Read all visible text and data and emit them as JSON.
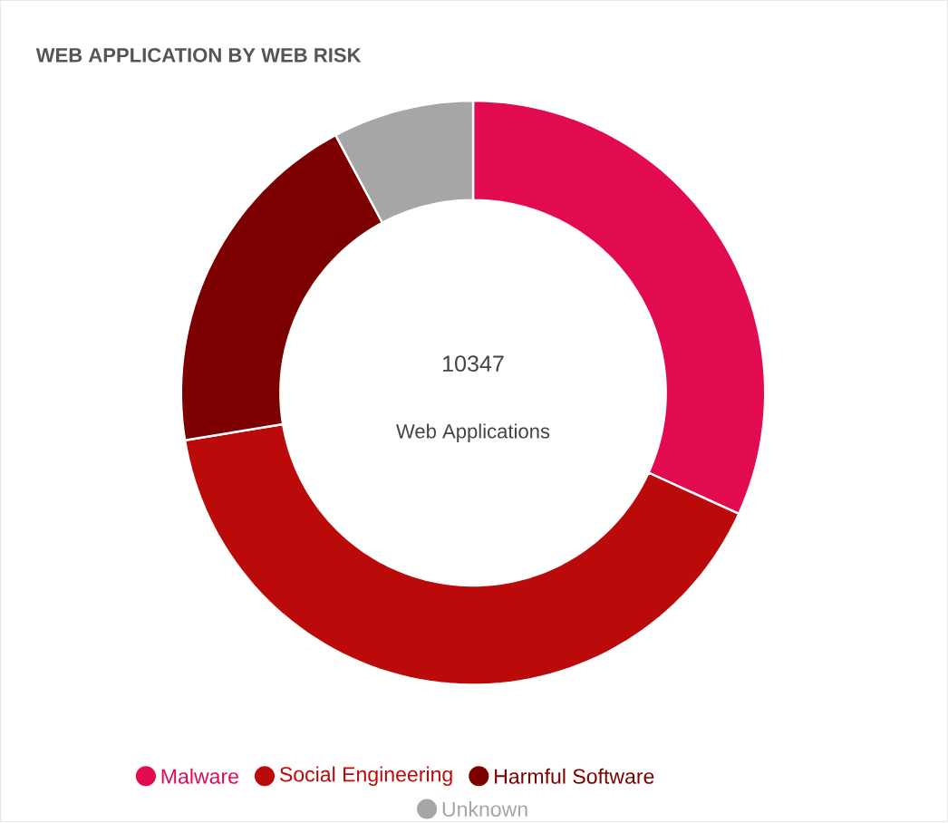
{
  "chart_data": {
    "type": "donut",
    "title": "WEB APPLICATION BY WEB RISK",
    "categories": [
      "Malware",
      "Social Engineering",
      "Harmful Software",
      "Unknown"
    ],
    "values": [
      31.8,
      40.6,
      19.8,
      7.8
    ],
    "colors": [
      "#e30b50",
      "#bb0a0a",
      "#7d0000",
      "#a6a6a6"
    ],
    "annotations": [
      "10347",
      "Web Applications"
    ],
    "legend": "bottom"
  }
}
